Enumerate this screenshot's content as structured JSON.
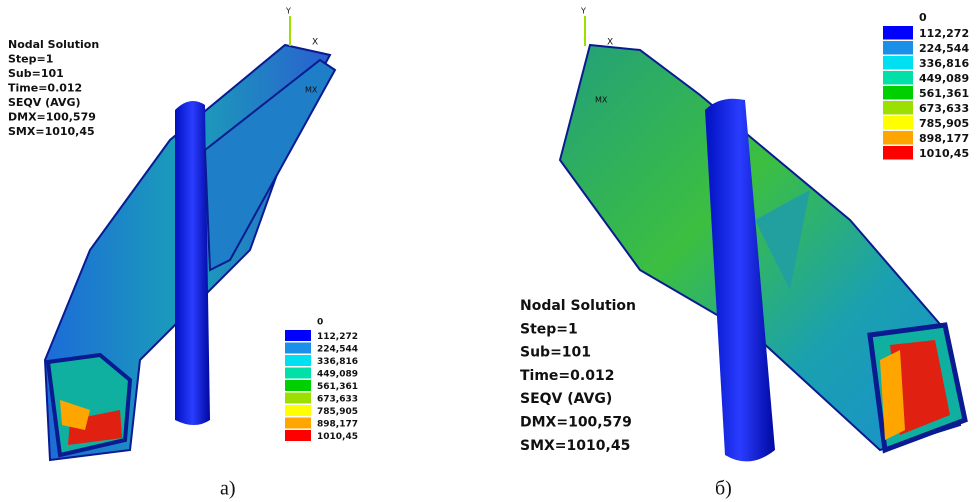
{
  "panels": [
    {
      "caption": "а)",
      "info": [
        "Nodal Solution",
        "Step=1",
        "Sub=101",
        "Time=0.012",
        "SEQV  (AVG)",
        "DMX=100,579",
        "SMX=1010,45"
      ],
      "axes": [
        "Y",
        "X"
      ],
      "marker": "MX",
      "legend": {
        "min_label": "0",
        "entries": [
          {
            "label": "112,272",
            "color": "#0000ff"
          },
          {
            "label": "224,544",
            "color": "#1a90e8"
          },
          {
            "label": "336,816",
            "color": "#00e0f0"
          },
          {
            "label": "449,089",
            "color": "#00e0a8"
          },
          {
            "label": "561,361",
            "color": "#00d000"
          },
          {
            "label": "673,633",
            "color": "#9be000"
          },
          {
            "label": "785,905",
            "color": "#ffff00"
          },
          {
            "label": "898,177",
            "color": "#ffa500"
          },
          {
            "label": "1010,45",
            "color": "#ff0000"
          }
        ]
      }
    },
    {
      "caption": "б)",
      "info": [
        "Nodal Solution",
        "Step=1",
        "Sub=101",
        "Time=0.012",
        "SEQV  (AVG)",
        "DMX=100,579",
        "SMX=1010,45"
      ],
      "axes": [
        "Y",
        "X"
      ],
      "marker": "MX",
      "legend": {
        "min_label": "0",
        "entries": [
          {
            "label": "112,272",
            "color": "#0000ff"
          },
          {
            "label": "224,544",
            "color": "#1a90e8"
          },
          {
            "label": "336,816",
            "color": "#00e0f0"
          },
          {
            "label": "449,089",
            "color": "#00e0a8"
          },
          {
            "label": "561,361",
            "color": "#00d000"
          },
          {
            "label": "673,633",
            "color": "#9be000"
          },
          {
            "label": "785,905",
            "color": "#ffff00"
          },
          {
            "label": "898,177",
            "color": "#ffa500"
          },
          {
            "label": "1010,45",
            "color": "#ff0000"
          }
        ]
      }
    }
  ]
}
